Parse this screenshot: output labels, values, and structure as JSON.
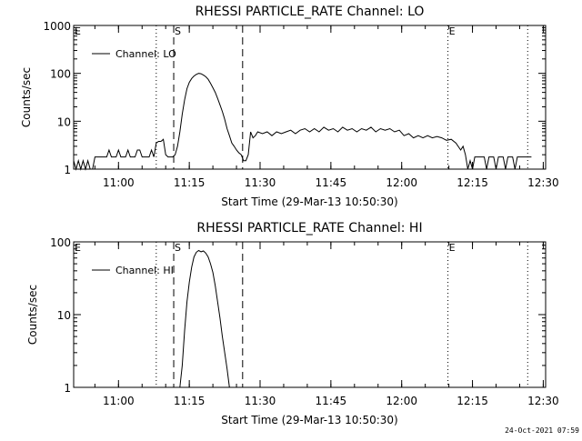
{
  "footer": {
    "timestamp": "24-Oct-2021 07:59"
  },
  "chart_data": [
    {
      "type": "line",
      "title": "RHESSI PARTICLE_RATE Channel: LO",
      "xlabel": "Start Time (29-Mar-13 10:50:30)",
      "ylabel": "Counts/sec",
      "yscale": "log",
      "xlim_minutes": [
        0,
        100
      ],
      "ylim": [
        1,
        1000
      ],
      "x_ticks": [
        {
          "minutes": 9.5,
          "label": "11:00"
        },
        {
          "minutes": 24.5,
          "label": "11:15"
        },
        {
          "minutes": 39.5,
          "label": "11:30"
        },
        {
          "minutes": 54.5,
          "label": "11:45"
        },
        {
          "minutes": 69.5,
          "label": "12:00"
        },
        {
          "minutes": 84.5,
          "label": "12:15"
        },
        {
          "minutes": 99.5,
          "label": "12:30"
        }
      ],
      "y_ticks": [
        {
          "value": 1,
          "label": "1"
        },
        {
          "value": 10,
          "label": "10"
        },
        {
          "value": 100,
          "label": "100"
        },
        {
          "value": 1000,
          "label": "1000"
        }
      ],
      "markers": [
        {
          "minutes": 17.5,
          "style": "dotted",
          "label": ""
        },
        {
          "minutes": 21.2,
          "style": "dashed",
          "label": "S"
        },
        {
          "minutes": 35.8,
          "style": "dashed",
          "label": ""
        },
        {
          "minutes": 79.3,
          "style": "dotted",
          "label": "E"
        },
        {
          "minutes": 96.2,
          "style": "dotted",
          "label": ""
        }
      ],
      "edge_labels": [
        "E"
      ],
      "legend": {
        "label": "Channel: LO",
        "position": "top-left"
      },
      "series": [
        {
          "name": "Channel: LO",
          "points": [
            [
              0.0,
              1.5
            ],
            [
              0.5,
              1.0
            ],
            [
              1.0,
              1.5
            ],
            [
              1.5,
              1.0
            ],
            [
              2.0,
              1.5
            ],
            [
              2.5,
              1.0
            ],
            [
              3.0,
              1.5
            ],
            [
              3.5,
              1.0
            ],
            [
              4.0,
              1.0
            ],
            [
              4.5,
              1.8
            ],
            [
              5.0,
              1.8
            ],
            [
              6.0,
              1.8
            ],
            [
              6.5,
              1.8
            ],
            [
              7.0,
              1.8
            ],
            [
              7.5,
              2.5
            ],
            [
              8.0,
              1.8
            ],
            [
              9.0,
              1.8
            ],
            [
              9.5,
              2.5
            ],
            [
              10.0,
              1.8
            ],
            [
              11.0,
              1.8
            ],
            [
              11.5,
              2.5
            ],
            [
              12.0,
              1.8
            ],
            [
              13.0,
              1.8
            ],
            [
              13.5,
              2.5
            ],
            [
              14.0,
              2.5
            ],
            [
              14.5,
              1.8
            ],
            [
              16.0,
              1.8
            ],
            [
              16.5,
              2.5
            ],
            [
              17.0,
              1.8
            ],
            [
              17.5,
              3.5
            ],
            [
              18.0,
              3.8
            ],
            [
              18.5,
              3.8
            ],
            [
              19.0,
              4.2
            ],
            [
              19.5,
              2.0
            ],
            [
              20.0,
              1.8
            ],
            [
              21.0,
              1.8
            ],
            [
              21.5,
              2.0
            ],
            [
              22.0,
              3.0
            ],
            [
              22.5,
              6.0
            ],
            [
              23.0,
              14.0
            ],
            [
              23.5,
              28.0
            ],
            [
              24.0,
              48.0
            ],
            [
              24.5,
              65.0
            ],
            [
              25.0,
              78.0
            ],
            [
              25.5,
              88.0
            ],
            [
              26.0,
              95.0
            ],
            [
              26.5,
              100.0
            ],
            [
              27.0,
              98.0
            ],
            [
              27.5,
              92.0
            ],
            [
              28.0,
              85.0
            ],
            [
              28.5,
              75.0
            ],
            [
              29.0,
              62.0
            ],
            [
              29.5,
              50.0
            ],
            [
              30.0,
              40.0
            ],
            [
              30.5,
              30.0
            ],
            [
              31.0,
              22.0
            ],
            [
              31.5,
              16.0
            ],
            [
              32.0,
              11.0
            ],
            [
              32.5,
              7.0
            ],
            [
              33.0,
              5.0
            ],
            [
              33.5,
              3.5
            ],
            [
              34.0,
              3.0
            ],
            [
              34.5,
              2.5
            ],
            [
              35.0,
              2.2
            ],
            [
              35.5,
              2.0
            ],
            [
              36.0,
              1.5
            ],
            [
              36.5,
              1.5
            ],
            [
              37.0,
              2.0
            ],
            [
              37.5,
              6.0
            ],
            [
              38.0,
              4.5
            ],
            [
              38.5,
              5.0
            ],
            [
              39.0,
              6.0
            ],
            [
              40.0,
              5.5
            ],
            [
              41.0,
              6.0
            ],
            [
              42.0,
              5.0
            ],
            [
              43.0,
              6.0
            ],
            [
              44.0,
              5.5
            ],
            [
              45.0,
              6.0
            ],
            [
              46.0,
              6.5
            ],
            [
              47.0,
              5.5
            ],
            [
              48.0,
              6.5
            ],
            [
              49.0,
              7.0
            ],
            [
              50.0,
              6.0
            ],
            [
              51.0,
              7.0
            ],
            [
              52.0,
              6.0
            ],
            [
              53.0,
              7.5
            ],
            [
              54.0,
              6.5
            ],
            [
              55.0,
              7.0
            ],
            [
              56.0,
              6.0
            ],
            [
              57.0,
              7.5
            ],
            [
              58.0,
              6.5
            ],
            [
              59.0,
              7.0
            ],
            [
              60.0,
              6.0
            ],
            [
              61.0,
              7.0
            ],
            [
              62.0,
              6.5
            ],
            [
              63.0,
              7.5
            ],
            [
              64.0,
              6.0
            ],
            [
              65.0,
              7.0
            ],
            [
              66.0,
              6.5
            ],
            [
              67.0,
              7.0
            ],
            [
              68.0,
              6.0
            ],
            [
              69.0,
              6.5
            ],
            [
              70.0,
              5.0
            ],
            [
              71.0,
              5.5
            ],
            [
              72.0,
              4.5
            ],
            [
              73.0,
              5.0
            ],
            [
              74.0,
              4.5
            ],
            [
              75.0,
              5.0
            ],
            [
              76.0,
              4.5
            ],
            [
              77.0,
              4.8
            ],
            [
              78.0,
              4.5
            ],
            [
              79.0,
              4.0
            ],
            [
              80.0,
              4.2
            ],
            [
              81.0,
              3.5
            ],
            [
              82.0,
              2.5
            ],
            [
              82.5,
              3.0
            ],
            [
              83.0,
              2.0
            ],
            [
              83.5,
              1.0
            ],
            [
              84.0,
              1.5
            ],
            [
              84.5,
              1.0
            ],
            [
              85.0,
              1.8
            ],
            [
              86.0,
              1.8
            ],
            [
              87.0,
              1.8
            ],
            [
              87.5,
              1.0
            ],
            [
              88.0,
              1.8
            ],
            [
              89.0,
              1.8
            ],
            [
              89.5,
              1.0
            ],
            [
              90.0,
              1.8
            ],
            [
              91.0,
              1.8
            ],
            [
              91.5,
              1.0
            ],
            [
              92.0,
              1.8
            ],
            [
              93.0,
              1.8
            ],
            [
              93.5,
              1.0
            ],
            [
              94.0,
              1.8
            ],
            [
              95.0,
              1.8
            ],
            [
              96.0,
              1.8
            ],
            [
              97.0,
              1.8
            ]
          ]
        }
      ]
    },
    {
      "type": "line",
      "title": "RHESSI PARTICLE_RATE Channel: HI",
      "xlabel": "Start Time (29-Mar-13 10:50:30)",
      "ylabel": "Counts/sec",
      "yscale": "log",
      "xlim_minutes": [
        0,
        100
      ],
      "ylim": [
        1,
        100
      ],
      "x_ticks": [
        {
          "minutes": 9.5,
          "label": "11:00"
        },
        {
          "minutes": 24.5,
          "label": "11:15"
        },
        {
          "minutes": 39.5,
          "label": "11:30"
        },
        {
          "minutes": 54.5,
          "label": "11:45"
        },
        {
          "minutes": 69.5,
          "label": "12:00"
        },
        {
          "minutes": 84.5,
          "label": "12:15"
        },
        {
          "minutes": 99.5,
          "label": "12:30"
        }
      ],
      "y_ticks": [
        {
          "value": 1,
          "label": "1"
        },
        {
          "value": 10,
          "label": "10"
        },
        {
          "value": 100,
          "label": "100"
        }
      ],
      "markers": [
        {
          "minutes": 17.5,
          "style": "dotted",
          "label": ""
        },
        {
          "minutes": 21.2,
          "style": "dashed",
          "label": "S"
        },
        {
          "minutes": 35.8,
          "style": "dashed",
          "label": ""
        },
        {
          "minutes": 79.3,
          "style": "dotted",
          "label": "E"
        },
        {
          "minutes": 96.2,
          "style": "dotted",
          "label": ""
        }
      ],
      "edge_labels": [
        "E"
      ],
      "legend": {
        "label": "Channel: HI",
        "position": "top-left"
      },
      "series": [
        {
          "name": "Channel: HI",
          "points": [
            [
              22.5,
              1.0
            ],
            [
              23.0,
              2.0
            ],
            [
              23.5,
              6.0
            ],
            [
              24.0,
              15.0
            ],
            [
              24.5,
              28.0
            ],
            [
              25.0,
              45.0
            ],
            [
              25.5,
              62.0
            ],
            [
              26.0,
              72.0
            ],
            [
              26.5,
              76.0
            ],
            [
              27.0,
              73.0
            ],
            [
              27.5,
              75.0
            ],
            [
              28.0,
              70.0
            ],
            [
              28.5,
              62.0
            ],
            [
              29.0,
              50.0
            ],
            [
              29.5,
              38.0
            ],
            [
              30.0,
              25.0
            ],
            [
              30.5,
              15.0
            ],
            [
              31.0,
              9.0
            ],
            [
              31.5,
              5.0
            ],
            [
              32.0,
              3.0
            ],
            [
              32.5,
              1.8
            ],
            [
              33.0,
              1.0
            ]
          ]
        }
      ]
    }
  ]
}
